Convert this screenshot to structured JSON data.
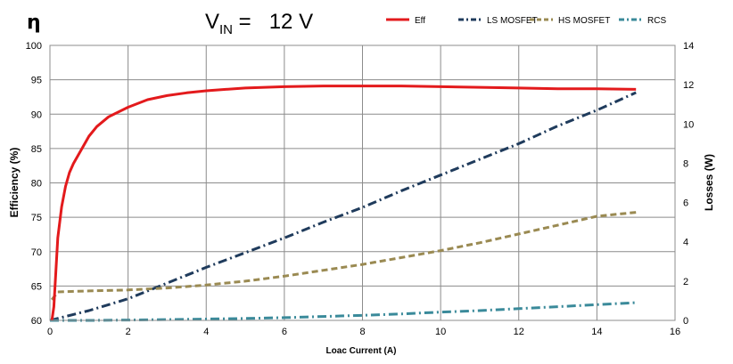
{
  "chart_data": {
    "type": "line",
    "title_symbol": "η",
    "title_prefix": "V",
    "title_subscript": "IN",
    "title_suffix": " =   12 V",
    "xlabel": "Loac Current (A)",
    "ylabel_left": "Efficiency (%)",
    "ylabel_right": "Losses (W)",
    "xlim": [
      0,
      16
    ],
    "ylim_left": [
      60,
      100
    ],
    "ylim_right": [
      0,
      14
    ],
    "x_ticks": [
      "0",
      "2",
      "4",
      "6",
      "8",
      "10",
      "12",
      "14",
      "16"
    ],
    "y_left_ticks": [
      "60",
      "65",
      "70",
      "75",
      "80",
      "85",
      "90",
      "95",
      "100"
    ],
    "y_right_ticks": [
      "0",
      "2",
      "4",
      "6",
      "8",
      "10",
      "12",
      "14"
    ],
    "grid": true,
    "legend_position": "top-right",
    "series": [
      {
        "name": "Eff",
        "axis": "left",
        "color": "#e31a1c",
        "dash": "solid",
        "x": [
          0.05,
          0.1,
          0.15,
          0.2,
          0.3,
          0.4,
          0.5,
          0.6,
          0.8,
          1.0,
          1.2,
          1.5,
          2.0,
          2.5,
          3.0,
          3.5,
          4.0,
          4.5,
          5.0,
          5.5,
          6.0,
          7.0,
          8.0,
          9.0,
          10.0,
          11.0,
          12.0,
          13.0,
          14.0,
          15.0
        ],
        "y": [
          60.0,
          62.0,
          67.0,
          72.0,
          76.5,
          79.5,
          81.5,
          82.8,
          84.8,
          86.8,
          88.2,
          89.6,
          91.0,
          92.1,
          92.7,
          93.1,
          93.4,
          93.6,
          93.8,
          93.9,
          94.0,
          94.1,
          94.1,
          94.1,
          94.0,
          93.9,
          93.8,
          93.7,
          93.7,
          93.6
        ]
      },
      {
        "name": "LS MOSFET",
        "axis": "right",
        "color": "#1f3b5c",
        "dash": "dashdot",
        "x": [
          0,
          1,
          2,
          3,
          4,
          5,
          6,
          7,
          8,
          9,
          10,
          11,
          12,
          13,
          14,
          15
        ],
        "y": [
          0.0,
          0.5,
          1.1,
          1.9,
          2.7,
          3.45,
          4.2,
          5.0,
          5.75,
          6.6,
          7.4,
          8.2,
          9.0,
          9.9,
          10.7,
          11.6
        ]
      },
      {
        "name": "HS MOSFET",
        "axis": "right",
        "color": "#9a8a52",
        "dash": "dashed",
        "x": [
          0.05,
          0.2,
          1,
          2,
          3,
          4,
          5,
          6,
          7,
          8,
          9,
          10,
          11,
          12,
          13,
          14,
          15
        ],
        "y": [
          1.05,
          1.45,
          1.5,
          1.55,
          1.65,
          1.8,
          2.0,
          2.25,
          2.55,
          2.85,
          3.2,
          3.55,
          3.95,
          4.4,
          4.85,
          5.3,
          5.5
        ]
      },
      {
        "name": "RCS",
        "axis": "right",
        "color": "#3a8a9a",
        "dash": "dashdot",
        "x": [
          0,
          1,
          2,
          3,
          4,
          5,
          6,
          7,
          8,
          9,
          10,
          11,
          12,
          13,
          14,
          15
        ],
        "y": [
          0.0,
          0.0,
          0.02,
          0.04,
          0.07,
          0.1,
          0.14,
          0.2,
          0.26,
          0.33,
          0.42,
          0.5,
          0.6,
          0.7,
          0.8,
          0.9
        ]
      }
    ]
  }
}
